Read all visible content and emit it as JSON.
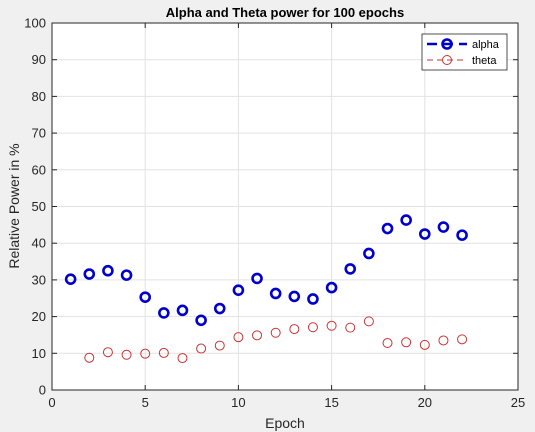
{
  "chart_data": {
    "type": "scatter",
    "title": "Alpha and Theta power for 100 epochs",
    "xlabel": "Epoch",
    "ylabel": "Relative Power in %",
    "xlim": [
      0,
      25
    ],
    "ylim": [
      0,
      100
    ],
    "xticks": [
      0,
      5,
      10,
      15,
      20,
      25
    ],
    "yticks": [
      0,
      10,
      20,
      30,
      40,
      50,
      60,
      70,
      80,
      90,
      100
    ],
    "grid": true,
    "legend_position": "top-right",
    "series": [
      {
        "name": "alpha",
        "color": "#0000cc",
        "marker": "circle",
        "line_style": "dashed-bold",
        "x": [
          1,
          2,
          3,
          4,
          5,
          6,
          7,
          8,
          9,
          10,
          11,
          12,
          13,
          14,
          15,
          16,
          17,
          18,
          19,
          20,
          21,
          22
        ],
        "y": [
          30.2,
          31.6,
          32.5,
          31.3,
          25.3,
          21.0,
          21.7,
          19.0,
          22.2,
          27.2,
          30.4,
          26.3,
          25.5,
          24.8,
          27.9,
          33.0,
          37.2,
          44.0,
          46.3,
          42.5,
          44.4,
          42.2
        ]
      },
      {
        "name": "theta",
        "color": "#cc3333",
        "marker": "circle",
        "line_style": "dashed",
        "x": [
          2,
          3,
          4,
          5,
          6,
          7,
          8,
          9,
          10,
          11,
          12,
          13,
          14,
          15,
          16,
          17,
          18,
          19,
          20,
          21,
          22
        ],
        "y": [
          8.8,
          10.3,
          9.6,
          9.9,
          10.1,
          8.7,
          11.3,
          12.1,
          14.4,
          14.9,
          15.6,
          16.6,
          17.1,
          17.5,
          17.0,
          18.7,
          12.8,
          13.0,
          12.3,
          13.5,
          13.8
        ]
      }
    ]
  }
}
